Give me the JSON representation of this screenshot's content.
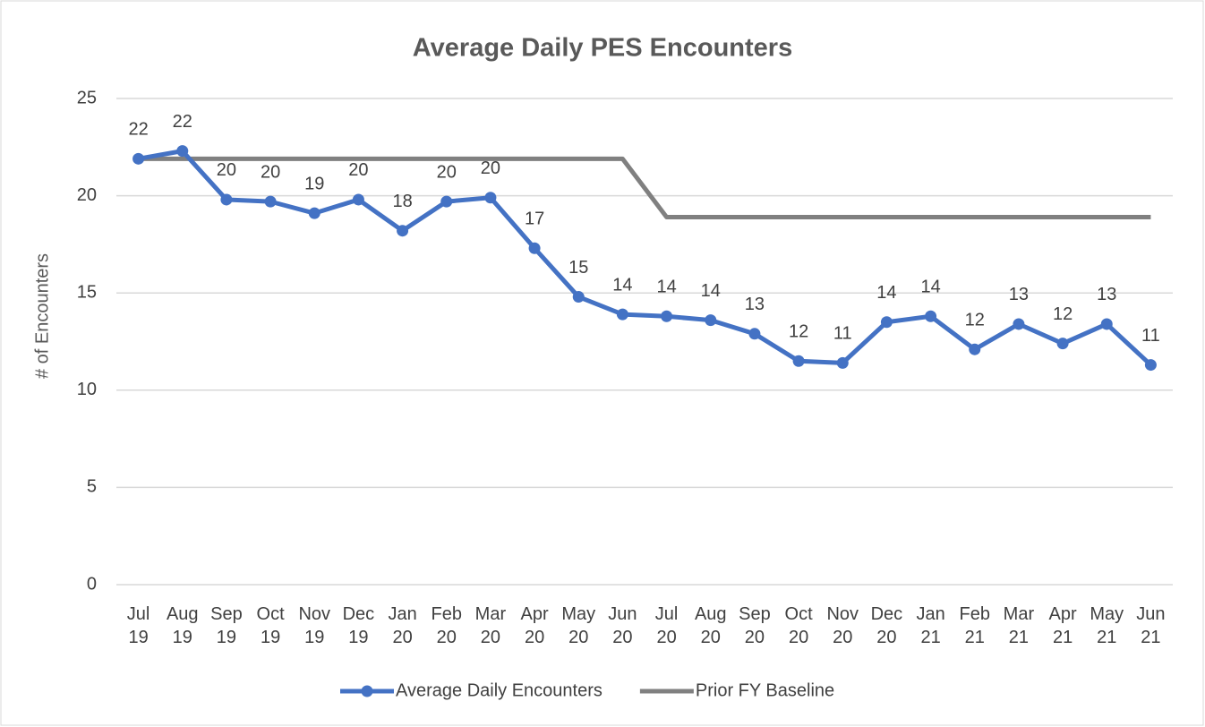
{
  "chart_data": {
    "type": "line",
    "title": "Average Daily PES Encounters",
    "y_label": "# of Encounters",
    "categories": [
      "Jul 19",
      "Aug 19",
      "Sep 19",
      "Oct 19",
      "Nov 19",
      "Dec 19",
      "Jan 20",
      "Feb 20",
      "Mar 20",
      "Apr 20",
      "May 20",
      "Jun 20",
      "Jul 20",
      "Aug 20",
      "Sep 20",
      "Oct 20",
      "Nov 20",
      "Dec 20",
      "Jan 21",
      "Feb 21",
      "Mar 21",
      "Apr 21",
      "May 21",
      "Jun 21"
    ],
    "series": [
      {
        "name": "Average Daily Encounters",
        "color": "#4472c4",
        "markers": true,
        "values": [
          21.9,
          22.3,
          19.8,
          19.7,
          19.1,
          19.8,
          18.2,
          19.7,
          19.9,
          17.3,
          14.8,
          13.9,
          13.8,
          13.6,
          12.9,
          11.5,
          11.4,
          13.5,
          13.8,
          12.1,
          13.4,
          12.4,
          13.4,
          11.3
        ],
        "value_labels": [
          "22",
          "22",
          "20",
          "20",
          "19",
          "20",
          "18",
          "20",
          "20",
          "17",
          "15",
          "14",
          "14",
          "14",
          "13",
          "12",
          "11",
          "14",
          "14",
          "12",
          "13",
          "12",
          "13",
          "11"
        ]
      },
      {
        "name": "Prior FY Baseline",
        "color": "#808080",
        "markers": false,
        "values": [
          21.9,
          21.9,
          21.9,
          21.9,
          21.9,
          21.9,
          21.9,
          21.9,
          21.9,
          21.9,
          21.9,
          21.9,
          18.9,
          18.9,
          18.9,
          18.9,
          18.9,
          18.9,
          18.9,
          18.9,
          18.9,
          18.9,
          18.9,
          18.9
        ]
      }
    ],
    "ylim": [
      0,
      25
    ],
    "yticks": [
      0,
      5,
      10,
      15,
      20,
      25
    ],
    "grid": true,
    "legend": "bottom"
  }
}
